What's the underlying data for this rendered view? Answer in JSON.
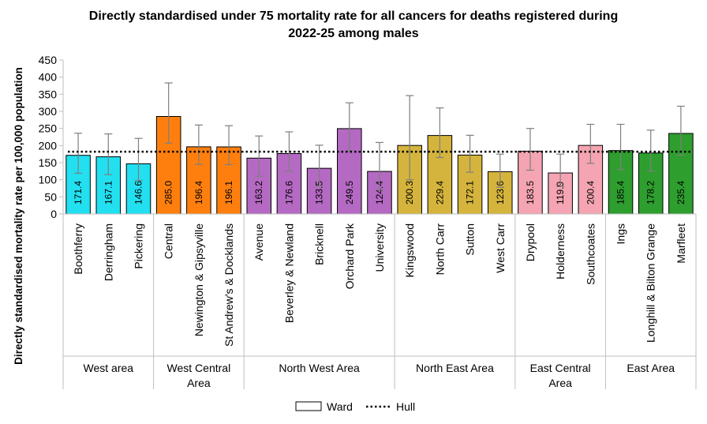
{
  "chart_data": {
    "type": "bar",
    "title_line1": "Directly standardised under 75 mortality rate for all cancers for deaths registered during",
    "title_line2": "2022-25 among males",
    "ylabel": "Directly standardised mortality rate per 100,000 population",
    "ylim": [
      0,
      450
    ],
    "yticks": [
      0,
      50,
      100,
      150,
      200,
      250,
      300,
      350,
      400,
      450
    ],
    "reference_line": {
      "name": "Hull",
      "value": 182
    },
    "legend": {
      "placement": "bottom",
      "ward_label": "Ward",
      "hull_label": "Hull"
    },
    "groups": [
      {
        "name": "West area",
        "color": "#22E0F0",
        "bars": [
          {
            "label": "Boothferry",
            "value": 171.4,
            "ci": [
              119,
              236
            ]
          },
          {
            "label": "Derringham",
            "value": 167.1,
            "ci": [
              115,
              234
            ]
          },
          {
            "label": "Pickering",
            "value": 146.6,
            "ci": [
              98,
              221
            ]
          }
        ]
      },
      {
        "name": "West Central Area",
        "color": "#FF7F0E",
        "bars": [
          {
            "label": "Central",
            "value": 285.0,
            "ci": [
              207,
              383
            ]
          },
          {
            "label": "Newington & Gipsyville",
            "value": 196.4,
            "ci": [
              145,
              260
            ]
          },
          {
            "label": "St Andrew's & Docklands",
            "value": 196.1,
            "ci": [
              144,
              258
            ]
          }
        ]
      },
      {
        "name": "North West Area",
        "color": "#B469C2",
        "bars": [
          {
            "label": "Avenue",
            "value": 163.2,
            "ci": [
              110,
              228
            ]
          },
          {
            "label": "Beverley & Newland",
            "value": 176.6,
            "ci": [
              125,
              240
            ]
          },
          {
            "label": "Bricknell",
            "value": 133.5,
            "ci": [
              82,
              201
            ]
          },
          {
            "label": "Orchard Park",
            "value": 249.5,
            "ci": [
              185,
              325
            ]
          },
          {
            "label": "University",
            "value": 124.4,
            "ci": [
              70,
              209
            ]
          }
        ]
      },
      {
        "name": "North East Area",
        "color": "#D4B43C",
        "bars": [
          {
            "label": "Kingswood",
            "value": 200.3,
            "ci": [
              100,
              346
            ]
          },
          {
            "label": "North Carr",
            "value": 229.4,
            "ci": [
              165,
              310
            ]
          },
          {
            "label": "Sutton",
            "value": 172.1,
            "ci": [
              122,
              230
            ]
          },
          {
            "label": "West Carr",
            "value": 123.6,
            "ci": [
              78,
              175
            ]
          }
        ]
      },
      {
        "name": "East Central Area",
        "color": "#F4A4B2",
        "bars": [
          {
            "label": "Drypool",
            "value": 183.5,
            "ci": [
              128,
              250
            ]
          },
          {
            "label": "Holderness",
            "value": 119.9,
            "ci": [
              80,
              175
            ]
          },
          {
            "label": "Southcoates",
            "value": 200.4,
            "ci": [
              148,
              262
            ]
          }
        ]
      },
      {
        "name": "East Area",
        "color": "#2E9E2E",
        "bars": [
          {
            "label": "Ings",
            "value": 185.4,
            "ci": [
              130,
              262
            ]
          },
          {
            "label": "Longhill & Bilton Grange",
            "value": 178.2,
            "ci": [
              125,
              245
            ]
          },
          {
            "label": "Marfleet",
            "value": 235.4,
            "ci": [
              172,
              315
            ]
          }
        ]
      }
    ]
  }
}
